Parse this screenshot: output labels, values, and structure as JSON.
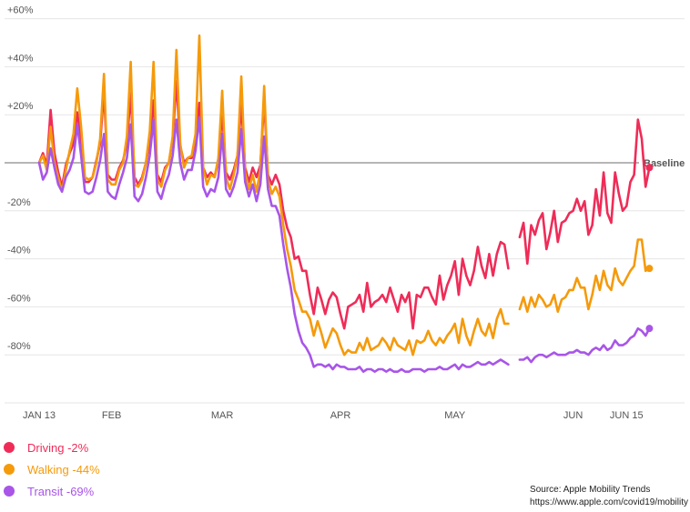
{
  "chart_data": {
    "type": "line",
    "title": "",
    "xlabel": "",
    "ylabel": "",
    "ylim": [
      -100,
      60
    ],
    "y_ticks": [
      -80,
      -60,
      -40,
      -20,
      0,
      20,
      40,
      60
    ],
    "y_tick_labels": [
      "-80%",
      "-60%",
      "-40%",
      "-20%",
      "",
      "+20%",
      "+40%",
      "+60%"
    ],
    "x_ticks": [
      {
        "x": 0,
        "label": "JAN 13"
      },
      {
        "x": 19,
        "label": "FEB"
      },
      {
        "x": 48,
        "label": "MAR"
      },
      {
        "x": 79,
        "label": "APR"
      },
      {
        "x": 109,
        "label": "MAY"
      },
      {
        "x": 140,
        "label": "JUN"
      },
      {
        "x": 154,
        "label": "JUN 15"
      }
    ],
    "baseline": {
      "value": 0,
      "label": "Baseline"
    },
    "gap_days": [
      119,
      120
    ],
    "series": [
      {
        "name": "Driving",
        "color": "#ef2c58",
        "final_value": -2,
        "values": [
          0,
          4,
          -1,
          22,
          4,
          -4,
          -10,
          -1,
          4,
          8,
          21,
          9,
          -8,
          -8,
          -6,
          1,
          8,
          30,
          -5,
          -7,
          -7,
          -2,
          1,
          8,
          29,
          -6,
          -9,
          -6,
          0,
          9,
          26,
          -5,
          -8,
          -2,
          0,
          10,
          34,
          7,
          0,
          2,
          2,
          10,
          25,
          -2,
          -6,
          -4,
          -6,
          1,
          21,
          -4,
          -7,
          -3,
          3,
          24,
          -2,
          -8,
          -2,
          -6,
          -1,
          26,
          -5,
          -9,
          -5,
          -9,
          -20,
          -27,
          -31,
          -40,
          -39,
          -45,
          -45,
          -55,
          -63,
          -52,
          -57,
          -63,
          -57,
          -54,
          -56,
          -63,
          -69,
          -60,
          -59,
          -58,
          -55,
          -62,
          -50,
          -60,
          -58,
          -57,
          -55,
          -58,
          -52,
          -57,
          -62,
          -55,
          -58,
          -54,
          -69,
          -55,
          -56,
          -52,
          -52,
          -56,
          -59,
          -47,
          -57,
          -51,
          -47,
          -41,
          -55,
          -40,
          -47,
          -51,
          -45,
          -35,
          -43,
          -48,
          -38,
          -47,
          -38,
          -33,
          -34,
          -44,
          null,
          null,
          -31,
          -25,
          -42,
          -26,
          -30,
          -24,
          -21,
          -36,
          -29,
          -20,
          -33,
          -25,
          -24,
          -21,
          -20,
          -15,
          -20,
          -16,
          -30,
          -26,
          -11,
          -22,
          -4,
          -21,
          -25,
          -4,
          -13,
          -20,
          -18,
          -8,
          -5,
          18,
          10,
          -10,
          -2
        ]
      },
      {
        "name": "Walking",
        "color": "#f59a0b",
        "final_value": -44,
        "values": [
          0,
          3,
          -3,
          15,
          0,
          -6,
          -12,
          -3,
          5,
          12,
          31,
          15,
          -6,
          -7,
          -6,
          0,
          10,
          37,
          -7,
          -9,
          -9,
          -3,
          0,
          11,
          42,
          -9,
          -10,
          -7,
          0,
          13,
          42,
          -7,
          -10,
          -3,
          0,
          11,
          47,
          8,
          -2,
          2,
          3,
          12,
          53,
          -2,
          -9,
          -5,
          -6,
          2,
          30,
          -6,
          -11,
          -5,
          3,
          36,
          -4,
          -11,
          -5,
          -12,
          -3,
          32,
          -7,
          -13,
          -10,
          -14,
          -26,
          -36,
          -43,
          -53,
          -57,
          -62,
          -62,
          -65,
          -72,
          -66,
          -71,
          -77,
          -73,
          -69,
          -71,
          -76,
          -80,
          -78,
          -79,
          -79,
          -75,
          -78,
          -73,
          -78,
          -77,
          -76,
          -73,
          -75,
          -78,
          -73,
          -76,
          -77,
          -78,
          -74,
          -80,
          -74,
          -75,
          -74,
          -70,
          -74,
          -76,
          -73,
          -75,
          -72,
          -70,
          -67,
          -75,
          -65,
          -72,
          -76,
          -70,
          -65,
          -70,
          -72,
          -67,
          -73,
          -65,
          -61,
          -67,
          -67,
          null,
          null,
          -61,
          -56,
          -62,
          -56,
          -60,
          -55,
          -57,
          -60,
          -59,
          -55,
          -62,
          -57,
          -56,
          -53,
          -53,
          -48,
          -52,
          -52,
          -61,
          -55,
          -47,
          -53,
          -45,
          -51,
          -53,
          -44,
          -49,
          -51,
          -48,
          -45,
          -43,
          -32,
          -32,
          -45,
          -44
        ]
      },
      {
        "name": "Transit",
        "color": "#a855e8",
        "final_value": -69,
        "values": [
          0,
          -7,
          -4,
          6,
          -2,
          -9,
          -12,
          -6,
          -3,
          2,
          16,
          3,
          -12,
          -13,
          -12,
          -6,
          1,
          12,
          -12,
          -14,
          -15,
          -9,
          -4,
          2,
          16,
          -14,
          -16,
          -13,
          -6,
          3,
          18,
          -12,
          -15,
          -9,
          -5,
          3,
          18,
          0,
          -7,
          -3,
          -3,
          5,
          19,
          -10,
          -14,
          -11,
          -12,
          -6,
          12,
          -11,
          -14,
          -10,
          -4,
          14,
          -8,
          -14,
          -9,
          -16,
          -9,
          11,
          -11,
          -18,
          -18,
          -22,
          -34,
          -44,
          -52,
          -63,
          -70,
          -75,
          -77,
          -80,
          -85,
          -84,
          -84,
          -85,
          -84,
          -86,
          -84,
          -85,
          -85,
          -86,
          -86,
          -86,
          -85,
          -87,
          -86,
          -86,
          -87,
          -86,
          -86,
          -87,
          -86,
          -87,
          -87,
          -86,
          -87,
          -87,
          -86,
          -86,
          -86,
          -87,
          -86,
          -86,
          -86,
          -85,
          -86,
          -86,
          -85,
          -84,
          -86,
          -84,
          -85,
          -85,
          -84,
          -83,
          -84,
          -84,
          -83,
          -84,
          -83,
          -82,
          -83,
          -84,
          null,
          null,
          -82,
          -82,
          -81,
          -83,
          -81,
          -80,
          -80,
          -81,
          -80,
          -79,
          -80,
          -80,
          -80,
          -79,
          -79,
          -78,
          -79,
          -79,
          -80,
          -78,
          -77,
          -78,
          -76,
          -78,
          -77,
          -74,
          -76,
          -76,
          -75,
          -73,
          -72,
          -69,
          -70,
          -72,
          -69
        ]
      }
    ]
  },
  "legend": {
    "items": [
      {
        "label": "Driving -2%",
        "color": "#ef2c58"
      },
      {
        "label": "Walking -44%",
        "color": "#f59a0b"
      },
      {
        "label": "Transit -69%",
        "color": "#a855e8"
      }
    ]
  },
  "source": {
    "line1": "Source: Apple Mobility Trends",
    "line2": "https://www.apple.com/covid19/mobility"
  }
}
